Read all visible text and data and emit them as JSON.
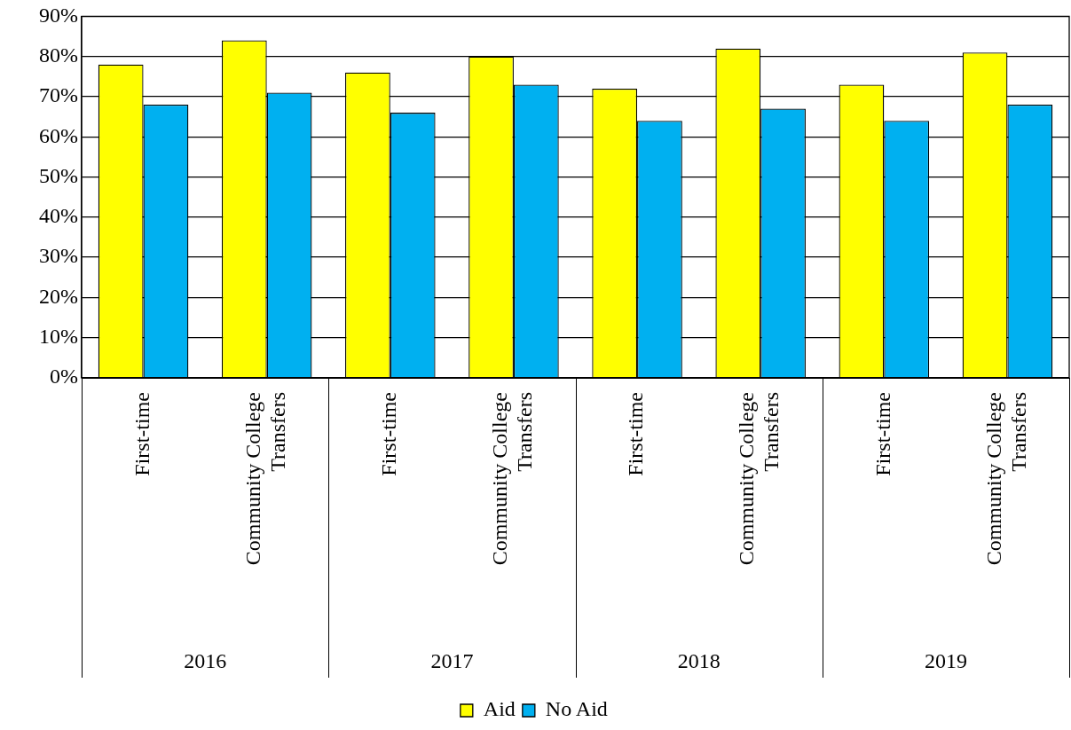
{
  "chart_data": {
    "type": "bar",
    "categories": [
      "First-time",
      "Community College Transfers",
      "First-time",
      "Community College Transfers",
      "First-time",
      "Community College Transfers",
      "First-time",
      "Community College Transfers"
    ],
    "series": [
      {
        "name": "Aid",
        "color": "#ffff00",
        "values": [
          78,
          84,
          76,
          80,
          72,
          82,
          73,
          81
        ]
      },
      {
        "name": "No Aid",
        "color": "#00b0f0",
        "values": [
          68,
          71,
          66,
          73,
          64,
          67,
          64,
          68
        ]
      }
    ],
    "annotations": [
      "2016",
      "2017",
      "2018",
      "2019"
    ],
    "ylim": [
      0,
      90
    ],
    "yticks": [
      {
        "value": 0,
        "label": "0%"
      },
      {
        "value": 10,
        "label": "10%"
      },
      {
        "value": 20,
        "label": "20%"
      },
      {
        "value": 30,
        "label": "30%"
      },
      {
        "value": 40,
        "label": "40%"
      },
      {
        "value": 50,
        "label": "50%"
      },
      {
        "value": 60,
        "label": "60%"
      },
      {
        "value": 70,
        "label": "70%"
      },
      {
        "value": 80,
        "label": "80%"
      },
      {
        "value": 90,
        "label": "90%"
      }
    ],
    "grid": "y",
    "legend": "bottom"
  }
}
